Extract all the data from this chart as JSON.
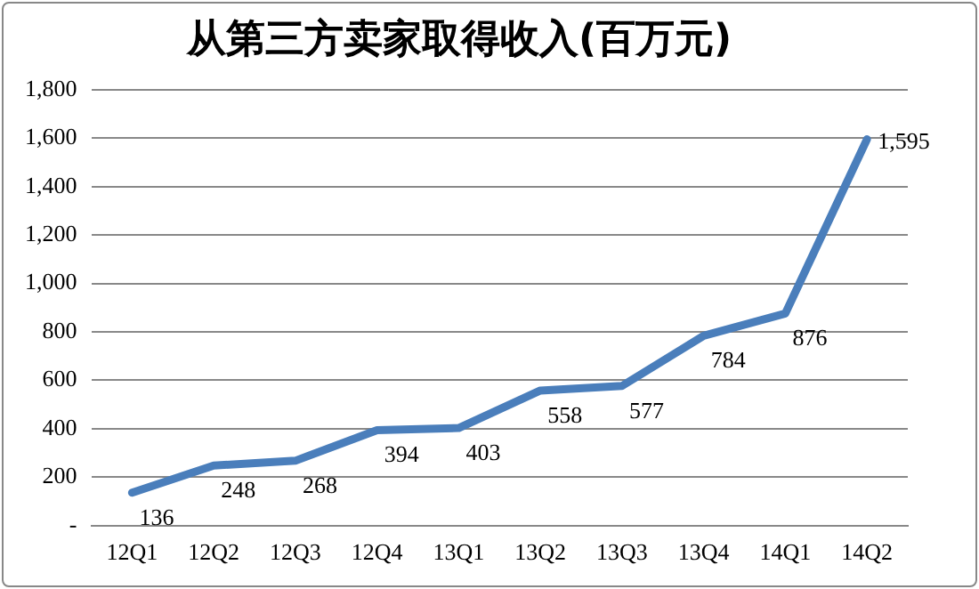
{
  "chart_data": {
    "type": "line",
    "title": "从第三方卖家取得收入(百万元)",
    "categories": [
      "12Q1",
      "12Q2",
      "12Q3",
      "12Q4",
      "13Q1",
      "13Q2",
      "13Q3",
      "13Q4",
      "14Q1",
      "14Q2"
    ],
    "series": [
      {
        "color": "#4a7ebb",
        "values": [
          136,
          248,
          268,
          394,
          403,
          558,
          577,
          784,
          876,
          1595
        ]
      }
    ],
    "value_labels": [
      "136",
      "248",
      "268",
      "394",
      "403",
      "558",
      "577",
      "784",
      "876",
      "1,595"
    ],
    "ylim": [
      0,
      1800
    ],
    "yticks": [
      {
        "value": 0,
        "label": "-"
      },
      {
        "value": 200,
        "label": "200"
      },
      {
        "value": 400,
        "label": "400"
      },
      {
        "value": 600,
        "label": "600"
      },
      {
        "value": 800,
        "label": "800"
      },
      {
        "value": 1000,
        "label": "1,000"
      },
      {
        "value": 1200,
        "label": "1,200"
      },
      {
        "value": 1400,
        "label": "1,400"
      },
      {
        "value": 1600,
        "label": "1,600"
      },
      {
        "value": 1800,
        "label": "1,800"
      }
    ],
    "grid": "y",
    "legend": false,
    "marker": "none",
    "line_style": "solid"
  }
}
